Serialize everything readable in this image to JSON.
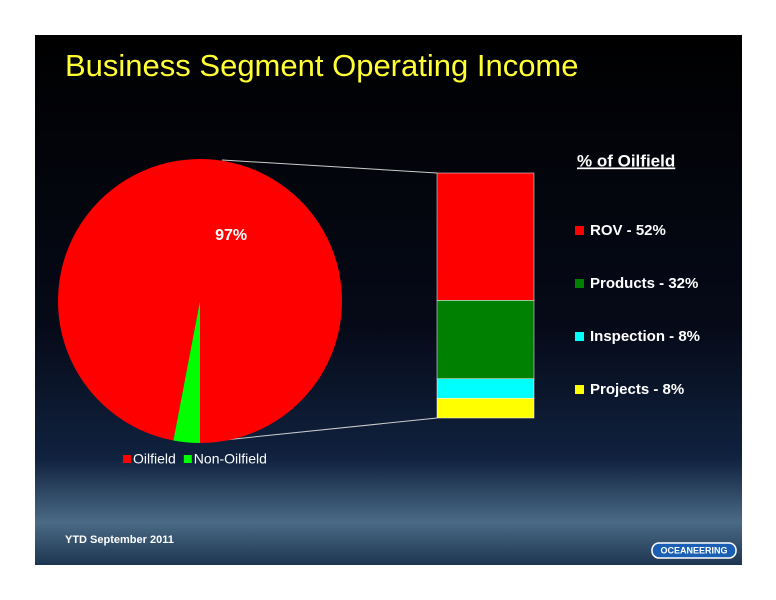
{
  "title": "Business Segment Operating Income",
  "footnote": "YTD September 2011",
  "logo": "OCEANEERING",
  "chart_data": [
    {
      "type": "pie",
      "categories": [
        "Oilfield",
        "Non-Oilfield"
      ],
      "values": [
        97,
        3
      ],
      "value_labels": [
        "97%",
        null
      ],
      "colors": [
        "#ff0000",
        "#00ff00"
      ]
    },
    {
      "type": "stacked-bar",
      "title": "% of Oilfield",
      "series": [
        {
          "name": "ROV - 52%",
          "color": "#ff0000",
          "values": [
            52
          ]
        },
        {
          "name": "Products - 32%",
          "color": "#008000",
          "values": [
            32
          ]
        },
        {
          "name": "Inspection - 8%",
          "color": "#00ffff",
          "values": [
            8
          ]
        },
        {
          "name": "Projects - 8%",
          "color": "#ffff00",
          "values": [
            8
          ]
        }
      ]
    }
  ]
}
